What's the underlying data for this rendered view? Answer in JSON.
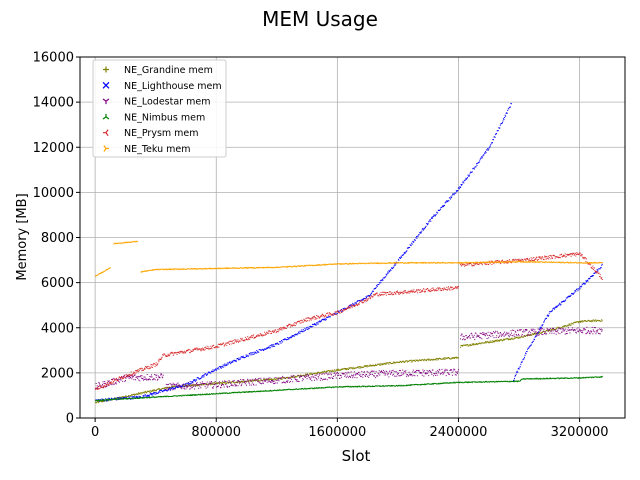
{
  "chart_data": {
    "type": "scatter",
    "title": "MEM Usage",
    "xlabel": "Slot",
    "ylabel": "Memory [MB]",
    "xlim": [
      -100000,
      3500000
    ],
    "ylim": [
      0,
      16000
    ],
    "xticks": [
      0,
      800000,
      1600000,
      2400000,
      3200000
    ],
    "yticks": [
      0,
      2000,
      4000,
      6000,
      8000,
      10000,
      12000,
      14000,
      16000
    ],
    "grid": true,
    "legend_position": "top-left",
    "series": [
      {
        "name": "NE_Grandine mem",
        "color": "#808000",
        "marker": "plus",
        "noise": 40,
        "segments": [
          {
            "x": [
              0,
              500000,
              800000,
              1200000,
              1600000,
              2000000,
              2400000
            ],
            "y": [
              700,
              1400,
              1550,
              1750,
              2150,
              2500,
              2700
            ]
          },
          {
            "x": [
              2410000,
              2800000,
              3000000,
              3200000,
              3350000
            ],
            "y": [
              3200,
              3600,
              3900,
              4300,
              4350
            ]
          }
        ]
      },
      {
        "name": "NE_Lighthouse mem",
        "color": "#0000ff",
        "marker": "x",
        "noise": 60,
        "segments": [
          {
            "x": [
              0,
              300000,
              600000,
              800000,
              1000000,
              1200000,
              1400000,
              1600000,
              1800000,
              2000000,
              2200000,
              2400000,
              2600000,
              2750000
            ],
            "y": [
              800,
              950,
              1500,
              2200,
              2800,
              3300,
              4000,
              4700,
              5400,
              7000,
              8700,
              10200,
              12000,
              14000
            ]
          },
          {
            "x": [
              2760000,
              2850000,
              3000000,
              3200000,
              3350000
            ],
            "y": [
              1700,
              3000,
              4700,
              5800,
              6800
            ]
          }
        ]
      },
      {
        "name": "NE_Lodestar mem",
        "color": "#800080",
        "marker": "tri_down",
        "noise": 150,
        "segments": [
          {
            "x": [
              0,
              200000,
              450000
            ],
            "y": [
              1400,
              1800,
              1850
            ]
          },
          {
            "x": [
              460000,
              800000,
              1200000,
              1600000,
              2000000,
              2400000
            ],
            "y": [
              1400,
              1500,
              1700,
              1900,
              2000,
              2050
            ]
          },
          {
            "x": [
              2410000,
              2800000,
              3200000,
              3350000
            ],
            "y": [
              3600,
              3800,
              3900,
              3900
            ]
          }
        ]
      },
      {
        "name": "NE_Nimbus mem",
        "color": "#008000",
        "marker": "tri_up",
        "noise": 20,
        "segments": [
          {
            "x": [
              0,
              400000,
              800000,
              1200000,
              1600000,
              2000000,
              2400000,
              2800000,
              2820000,
              3200000,
              3350000
            ],
            "y": [
              800,
              950,
              1100,
              1250,
              1400,
              1450,
              1600,
              1650,
              1750,
              1800,
              1850
            ]
          }
        ]
      },
      {
        "name": "NE_Prysm mem",
        "color": "#d62728",
        "marker": "tri_left",
        "noise": 80,
        "segments": [
          {
            "x": [
              0,
              200000,
              400000,
              450000,
              800000,
              1200000,
              1400000,
              1600000,
              1800000,
              1850000,
              2400000
            ],
            "y": [
              1300,
              1900,
              2400,
              2800,
              3200,
              3900,
              4400,
              4700,
              5300,
              5500,
              5800
            ]
          },
          {
            "x": [
              2410000,
              2800000,
              3200000,
              3350000
            ],
            "y": [
              6800,
              7000,
              7300,
              6200
            ]
          }
        ]
      },
      {
        "name": "NE_Teku mem",
        "color": "#ffa500",
        "marker": "tri_right",
        "noise": 20,
        "segments": [
          {
            "x": [
              0,
              100000
            ],
            "y": [
              6300,
              6700
            ]
          },
          {
            "x": [
              120000,
              280000
            ],
            "y": [
              7750,
              7850
            ]
          },
          {
            "x": [
              300000,
              400000,
              800000,
              1200000,
              1600000,
              2000000,
              2400000,
              2800000,
              3200000,
              3350000
            ],
            "y": [
              6500,
              6600,
              6650,
              6700,
              6850,
              6900,
              6900,
              6950,
              6900,
              6900
            ]
          }
        ]
      }
    ]
  }
}
